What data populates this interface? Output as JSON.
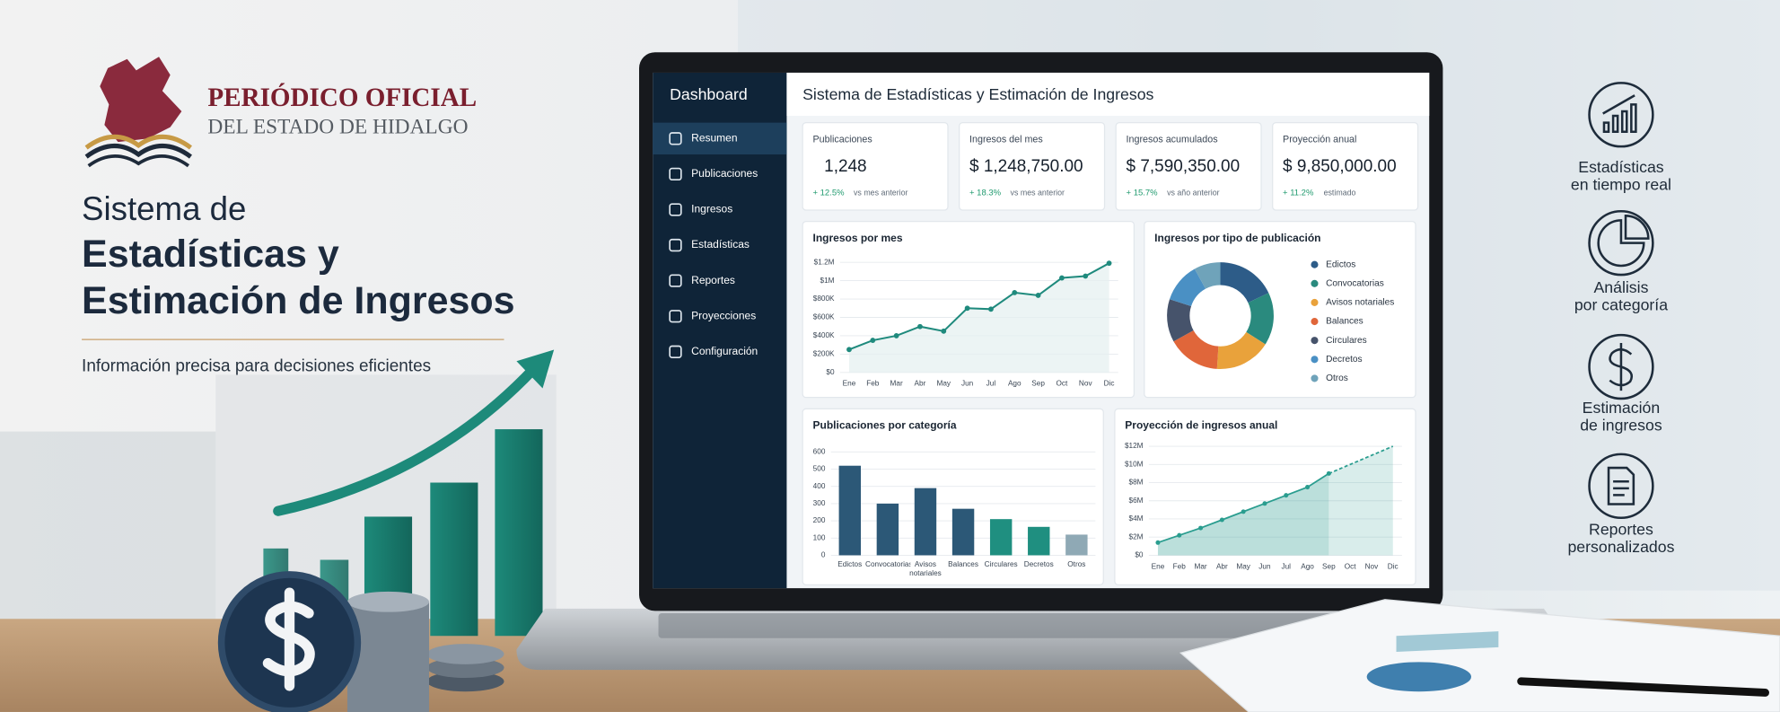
{
  "header": {
    "title_line1": "PERIÓDICO OFICIAL",
    "title_line2": "DEL ESTADO DE HIDALGO"
  },
  "hero": {
    "title_lines": [
      "Sistema de",
      "Estadísticas y",
      "Estimación de Ingresos"
    ],
    "subtitle": "Información precisa para decisiones eficientes"
  },
  "sidebar": {
    "title": "Dashboard",
    "items": [
      "Resumen",
      "Publicaciones",
      "Ingresos",
      "Estadísticas",
      "Reportes",
      "Proyecciones",
      "Configuración"
    ]
  },
  "dashboard": {
    "title": "Sistema de Estadísticas y Estimación de Ingresos",
    "kpis": [
      {
        "label": "Publicaciones",
        "value": "1,248",
        "change": "+ 12.5%",
        "note": "vs mes anterior"
      },
      {
        "label": "Ingresos del mes",
        "value": "$ 1,248,750.00",
        "change": "+ 18.3%",
        "note": "vs mes anterior"
      },
      {
        "label": "Ingresos acumulados",
        "value": "$ 7,590,350.00",
        "change": "+ 15.7%",
        "note": "vs año anterior"
      },
      {
        "label": "Proyección anual",
        "value": "$ 9,850,000.00",
        "change": "+ 11.2%",
        "note": "estimado"
      }
    ],
    "charts": [
      {
        "type": "line",
        "title": "Ingresos por mes",
        "categories": [
          "Ene",
          "Feb",
          "Mar",
          "Abr",
          "May",
          "Jun",
          "Jul",
          "Ago",
          "Sep",
          "Oct",
          "Nov",
          "Dic"
        ],
        "values": [
          250000,
          350000,
          400000,
          500000,
          450000,
          700000,
          690000,
          870000,
          840000,
          1030000,
          1050000,
          1190000
        ],
        "color": "#1f8a7d",
        "ylim": [
          0,
          1200000
        ],
        "yticks": [
          {
            "value": 0,
            "label": "$0"
          },
          {
            "value": 200000,
            "label": "$200K"
          },
          {
            "value": 400000,
            "label": "$400K"
          },
          {
            "value": 600000,
            "label": "$600K"
          },
          {
            "value": 800000,
            "label": "$800K"
          },
          {
            "value": 1000000,
            "label": "$1M"
          },
          {
            "value": 1200000,
            "label": "$1.2M"
          }
        ],
        "grid": true
      },
      {
        "type": "donut",
        "title": "Ingresos por tipo de publicación",
        "categories": [
          "Edictos",
          "Convocatorias",
          "Avisos notariales",
          "Balances",
          "Circulares",
          "Decretos",
          "Otros"
        ],
        "values": [
          18,
          16,
          17,
          16,
          13,
          12,
          8
        ],
        "colors": [
          "#2d5c88",
          "#2a8a7e",
          "#e9a23b",
          "#e0663a",
          "#46536b",
          "#4a90c4",
          "#6fa3ba"
        ]
      },
      {
        "type": "bar",
        "title": "Publicaciones por categoría",
        "categories": [
          "Edictos",
          "Convocatorias",
          "Avisos notariales",
          "Balances",
          "Circulares",
          "Decretos",
          "Otros"
        ],
        "values": [
          520,
          300,
          390,
          270,
          210,
          165,
          120
        ],
        "colors": [
          "#2c5877",
          "#2c5877",
          "#2c5877",
          "#2c5877",
          "#1f8f80",
          "#1f8f80",
          "#8fa9b5"
        ],
        "ylim": [
          0,
          600
        ],
        "yticks": [
          0,
          100,
          200,
          300,
          400,
          500,
          600
        ],
        "grid": true
      },
      {
        "type": "area",
        "title": "Proyección de ingresos anual",
        "categories": [
          "Ene",
          "Feb",
          "Mar",
          "Abr",
          "May",
          "Jun",
          "Jul",
          "Ago",
          "Sep",
          "Oct",
          "Nov",
          "Dic"
        ],
        "series": [
          {
            "color": "#2a9d8f",
            "values": [
              1400000,
              2200000,
              3000000,
              3900000,
              4800000,
              5700000,
              6600000,
              7500000,
              9000000,
              null,
              null,
              null
            ]
          },
          {
            "color": "#2a9d8f",
            "dashed": true,
            "values": [
              null,
              null,
              null,
              null,
              null,
              null,
              null,
              null,
              9000000,
              10000000,
              11000000,
              12000000
            ]
          }
        ],
        "ylim": [
          0,
          12000000
        ],
        "yticks": [
          {
            "value": 0,
            "label": "$0"
          },
          {
            "value": 2000000,
            "label": "$2M"
          },
          {
            "value": 4000000,
            "label": "$4M"
          },
          {
            "value": 6000000,
            "label": "$6M"
          },
          {
            "value": 8000000,
            "label": "$8M"
          },
          {
            "value": 10000000,
            "label": "$10M"
          },
          {
            "value": 12000000,
            "label": "$12M"
          }
        ],
        "grid": true
      }
    ]
  },
  "features": [
    {
      "lines": [
        "Estadísticas",
        "en tiempo real"
      ]
    },
    {
      "lines": [
        "Análisis",
        "por categoría"
      ]
    },
    {
      "lines": [
        "Estimación",
        "de ingresos"
      ]
    },
    {
      "lines": [
        "Reportes",
        "personalizados"
      ]
    }
  ]
}
